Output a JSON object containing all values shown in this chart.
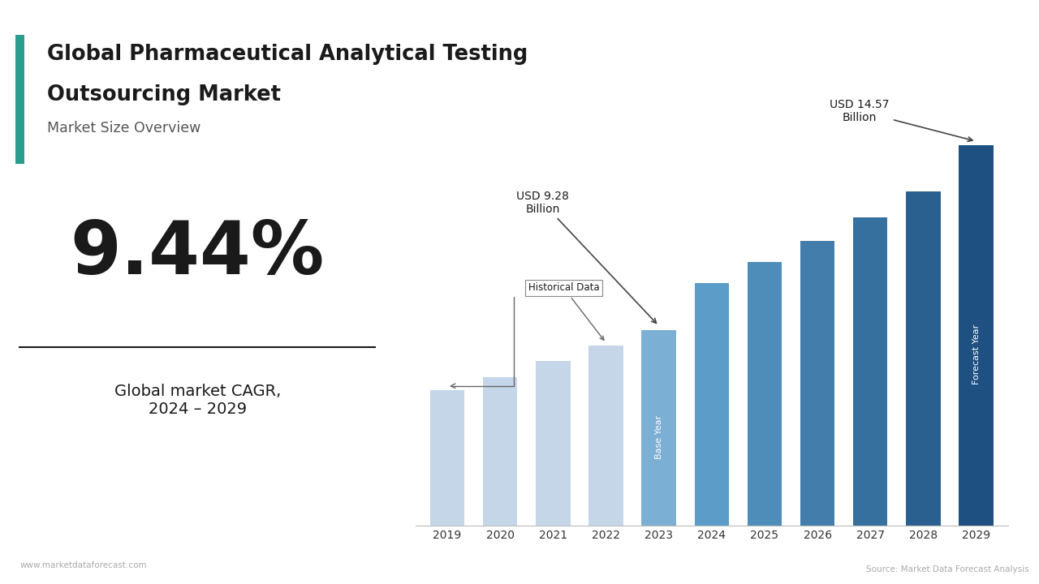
{
  "years": [
    2019,
    2020,
    2021,
    2022,
    2023,
    2024,
    2025,
    2026,
    2027,
    2028,
    2029
  ],
  "values": [
    5.2,
    5.7,
    6.3,
    6.9,
    7.5,
    9.28,
    10.1,
    10.9,
    11.8,
    12.8,
    14.57
  ],
  "title_line1": "Global Pharmaceutical Analytical Testing",
  "title_line2": "Outsourcing Market",
  "subtitle": "Market Size Overview",
  "cagr_text": "9.44%",
  "cagr_label": "Global market CAGR,\n2024 – 2029",
  "annotation_9_28": "USD 9.28\nBillion",
  "annotation_14_57": "USD 14.57\nBillion",
  "historical_label": "Historical Data",
  "base_year_label": "Base Year",
  "forecast_year_label": "Forecast Year",
  "website": "www.marketdataforecast.com",
  "source": "Source: Market Data Forecast Analysis",
  "bg_color": "#ffffff",
  "teal_color": "#2a9d8f",
  "bar_colors": [
    "#c5d6e8",
    "#c5d6e8",
    "#c5d6e8",
    "#c5d6e8",
    "#7bafd4",
    "#5b9dc8",
    "#4e8dba",
    "#427dac",
    "#36709e",
    "#2a6090",
    "#1e5082"
  ]
}
